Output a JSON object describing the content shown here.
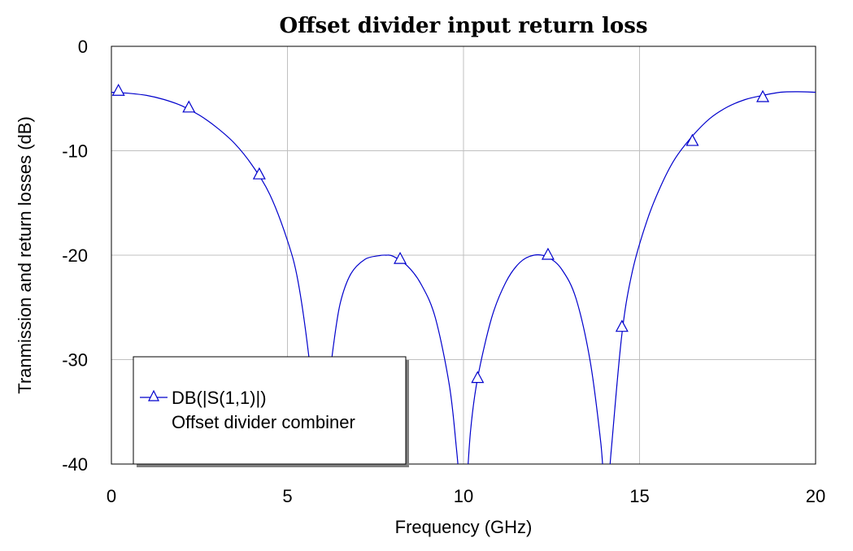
{
  "chart_data": {
    "type": "line",
    "title": "Offset divider input return loss",
    "xlabel": "Frequency (GHz)",
    "ylabel": "Tranmission and return losses (dB)",
    "xlim": [
      0,
      20
    ],
    "ylim": [
      -40,
      0
    ],
    "xticks": [
      0,
      5,
      10,
      15,
      20
    ],
    "yticks": [
      0,
      -10,
      -20,
      -30,
      -40
    ],
    "grid": true,
    "legend_position": "bottom-left",
    "series": [
      {
        "name": "DB(|S(1,1)|)",
        "subtitle": "Offset divider combiner",
        "color": "#0000cc",
        "marker": "triangle",
        "x": [
          0,
          0.5,
          1,
          1.5,
          2,
          2.5,
          3,
          3.5,
          4,
          4.5,
          5,
          5.3,
          5.6,
          5.8,
          5.9,
          6.0,
          6.1,
          6.2,
          6.3,
          6.5,
          6.8,
          7.2,
          7.6,
          7.8,
          8.0,
          8.4,
          8.8,
          9.2,
          9.6,
          9.8,
          9.95,
          10.05,
          10.2,
          10.4,
          10.8,
          11.2,
          11.6,
          12.0,
          12.4,
          12.8,
          13.2,
          13.6,
          13.9,
          14.05,
          14.2,
          14.5,
          14.8,
          15.2,
          15.6,
          16.0,
          16.5,
          17.0,
          17.5,
          18.0,
          18.5,
          19.0,
          19.5,
          20
        ],
        "y": [
          -4.4,
          -4.5,
          -4.7,
          -5.1,
          -5.7,
          -6.6,
          -7.8,
          -9.3,
          -11.4,
          -14.2,
          -18.6,
          -22.5,
          -29.5,
          -36.5,
          -42,
          -42,
          -37,
          -32,
          -28.8,
          -24.6,
          -21.8,
          -20.4,
          -20.05,
          -20.0,
          -20.1,
          -21.0,
          -22.8,
          -26.0,
          -32.5,
          -38.5,
          -44,
          -44,
          -36.8,
          -31.8,
          -26.0,
          -22.6,
          -20.7,
          -20.0,
          -20.2,
          -21.4,
          -24.2,
          -30.2,
          -38.0,
          -44,
          -38.5,
          -27.5,
          -21.5,
          -16.8,
          -13.4,
          -10.8,
          -8.6,
          -6.9,
          -5.8,
          -5.1,
          -4.7,
          -4.4,
          -4.35,
          -4.4
        ],
        "markers_x": [
          0.2,
          2.2,
          4.2,
          8.2,
          10.4,
          12.4,
          14.5,
          16.5,
          18.5
        ],
        "markers_y": [
          -4.3,
          -5.9,
          -12.3,
          -20.4,
          -31.8,
          -20.0,
          -26.9,
          -9.1,
          -4.9
        ]
      }
    ]
  }
}
